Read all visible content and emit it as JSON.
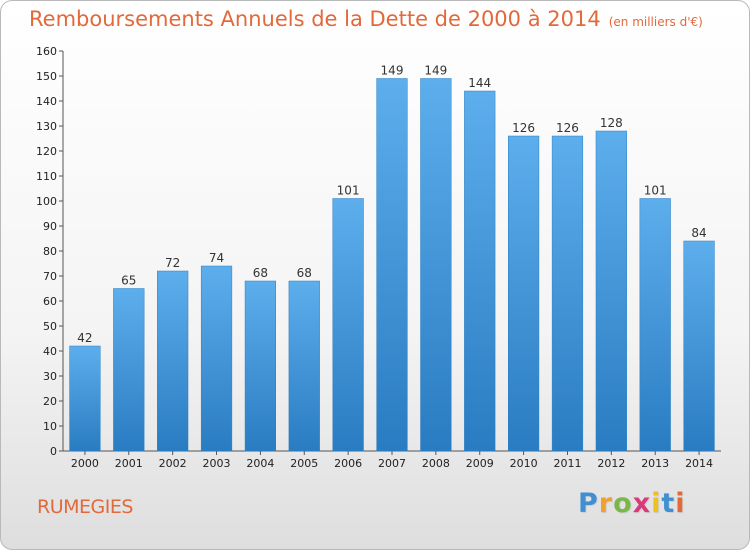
{
  "chart_data": {
    "type": "bar",
    "title": "Remboursements Annuels de la Dette de 2000 à 2014",
    "subtitle": "(en milliers d'€)",
    "categories": [
      "2000",
      "2001",
      "2002",
      "2003",
      "2004",
      "2005",
      "2006",
      "2007",
      "2008",
      "2009",
      "2010",
      "2011",
      "2012",
      "2013",
      "2014"
    ],
    "values": [
      42,
      65,
      72,
      74,
      68,
      68,
      101,
      149,
      149,
      144,
      126,
      126,
      128,
      101,
      84
    ],
    "xlabel": "",
    "ylabel": "",
    "ylim": [
      0,
      160
    ],
    "yticks": [
      0,
      10,
      20,
      30,
      40,
      50,
      60,
      70,
      80,
      90,
      100,
      110,
      120,
      130,
      140,
      150,
      160
    ],
    "grid": false,
    "bar_color": "#3a8fd6"
  },
  "footer": {
    "commune": "RUMEGIES",
    "brand": "Proxiti",
    "brand_colors": [
      "#3f8fd2",
      "#f0a030",
      "#7ab648",
      "#d93b7a",
      "#f0c020",
      "#3f8fd2",
      "#e2693a"
    ]
  },
  "colors": {
    "title": "#e2693a",
    "axis": "#555555"
  }
}
